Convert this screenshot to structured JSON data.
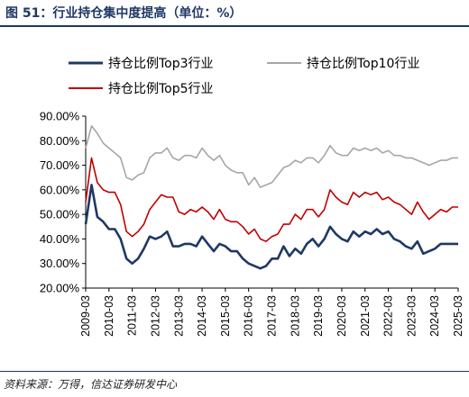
{
  "title": "图 51：行业持仓集中度提高（单位：%）",
  "source": "资料来源：万得，信达证券研发中心",
  "chart_data": {
    "type": "line",
    "title": "图 51：行业持仓集中度提高（单位：%）",
    "xlabel": "",
    "ylabel": "",
    "ylim": [
      20,
      90
    ],
    "y_ticks": [
      "20.00%",
      "30.00%",
      "40.00%",
      "50.00%",
      "60.00%",
      "70.00%",
      "80.00%",
      "90.00%"
    ],
    "x_ticks": [
      "2009-03",
      "2010-03",
      "2011-03",
      "2012-03",
      "2013-03",
      "2014-03",
      "2015-03",
      "2016-03",
      "2017-03",
      "2018-03",
      "2019-03",
      "2020-03",
      "2021-03",
      "2022-03",
      "2023-03",
      "2024-03",
      "2025-03"
    ],
    "grid": false,
    "legend_position": "top",
    "x": [
      "2009-03",
      "2009-06",
      "2009-09",
      "2009-12",
      "2010-03",
      "2010-06",
      "2010-09",
      "2010-12",
      "2011-03",
      "2011-06",
      "2011-09",
      "2011-12",
      "2012-03",
      "2012-06",
      "2012-09",
      "2012-12",
      "2013-03",
      "2013-06",
      "2013-09",
      "2013-12",
      "2014-03",
      "2014-06",
      "2014-09",
      "2014-12",
      "2015-03",
      "2015-06",
      "2015-09",
      "2015-12",
      "2016-03",
      "2016-06",
      "2016-09",
      "2016-12",
      "2017-03",
      "2017-06",
      "2017-09",
      "2017-12",
      "2018-03",
      "2018-06",
      "2018-09",
      "2018-12",
      "2019-03",
      "2019-06",
      "2019-09",
      "2019-12",
      "2020-03",
      "2020-06",
      "2020-09",
      "2020-12",
      "2021-03",
      "2021-06",
      "2021-09",
      "2021-12",
      "2022-03",
      "2022-06",
      "2022-09",
      "2022-12",
      "2023-03",
      "2023-06",
      "2023-09",
      "2023-12",
      "2024-03",
      "2024-06",
      "2024-09",
      "2024-12",
      "2025-03"
    ],
    "series": [
      {
        "name": "持仓比例Top3行业",
        "color": "#1f3864",
        "values": [
          46,
          62,
          49,
          47,
          44,
          44,
          40,
          32,
          30,
          32,
          36,
          41,
          40,
          41,
          43,
          37,
          37,
          38,
          38,
          37,
          41,
          38,
          35,
          38,
          37,
          35,
          35,
          32,
          30,
          29,
          28,
          29,
          32,
          32,
          37,
          33,
          36,
          34,
          38,
          40,
          37,
          40,
          45,
          42,
          40,
          39,
          43,
          41,
          43,
          42,
          44,
          42,
          43,
          40,
          39,
          37,
          36,
          39,
          34,
          35,
          36,
          38,
          38,
          38,
          38
        ]
      },
      {
        "name": "持仓比例Top10行业",
        "color": "#a6a6a6",
        "values": [
          77,
          86,
          83,
          79,
          77,
          75,
          73,
          65,
          64,
          66,
          67,
          73,
          75,
          75,
          77,
          73,
          72,
          74,
          74,
          73,
          77,
          74,
          72,
          74,
          70,
          68,
          67,
          67,
          62,
          65,
          61,
          62,
          63,
          66,
          69,
          70,
          72,
          71,
          73,
          73,
          71,
          74,
          78,
          75,
          74,
          74,
          77,
          76,
          77,
          76,
          77,
          75,
          76,
          74,
          74,
          73,
          73,
          72,
          71,
          70,
          71,
          72,
          72,
          73,
          73
        ]
      },
      {
        "name": "持仓比例Top5行业",
        "color": "#c00000",
        "values": [
          55,
          73,
          63,
          60,
          59,
          59,
          54,
          43,
          41,
          43,
          46,
          52,
          55,
          58,
          57,
          57,
          51,
          50,
          52,
          51,
          53,
          51,
          48,
          52,
          48,
          47,
          47,
          45,
          42,
          44,
          40,
          39,
          41,
          42,
          46,
          46,
          50,
          48,
          52,
          52,
          49,
          52,
          60,
          57,
          55,
          54,
          59,
          57,
          59,
          58,
          59,
          56,
          57,
          55,
          54,
          52,
          50,
          55,
          51,
          48,
          50,
          52,
          51,
          53,
          53
        ]
      }
    ]
  }
}
